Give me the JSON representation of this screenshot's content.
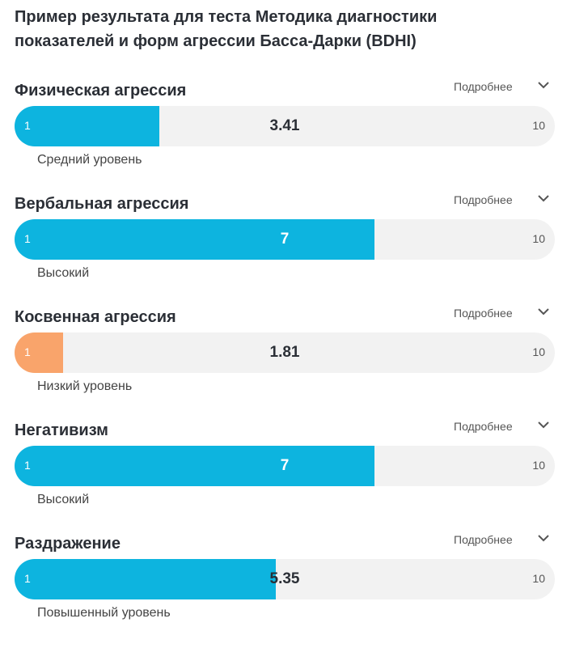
{
  "header": {
    "title": "Пример результата для теста Методика диагностики показателей и форм агрессии Басса-Дарки (BDHI)"
  },
  "items": [
    {
      "name": "Физическая агрессия",
      "more": "Подробнее",
      "min": 1,
      "max": 10,
      "value": 3.41,
      "level": "Средний уровень",
      "color": "#0db4df"
    },
    {
      "name": "Вербальная агрессия",
      "more": "Подробнее",
      "min": 1,
      "max": 10,
      "value": 7,
      "level": "Высокий",
      "color": "#0db4df"
    },
    {
      "name": "Косвенная агрессия",
      "more": "Подробнее",
      "min": 1,
      "max": 10,
      "value": 1.81,
      "level": "Низкий уровень",
      "color": "#f9a46b"
    },
    {
      "name": "Негативизм",
      "more": "Подробнее",
      "min": 1,
      "max": 10,
      "value": 7,
      "level": "Высокий",
      "color": "#0db4df"
    },
    {
      "name": "Раздражение",
      "more": "Подробнее",
      "min": 1,
      "max": 10,
      "value": 5.35,
      "level": "Повышенный уровень",
      "color": "#0db4df"
    }
  ]
}
